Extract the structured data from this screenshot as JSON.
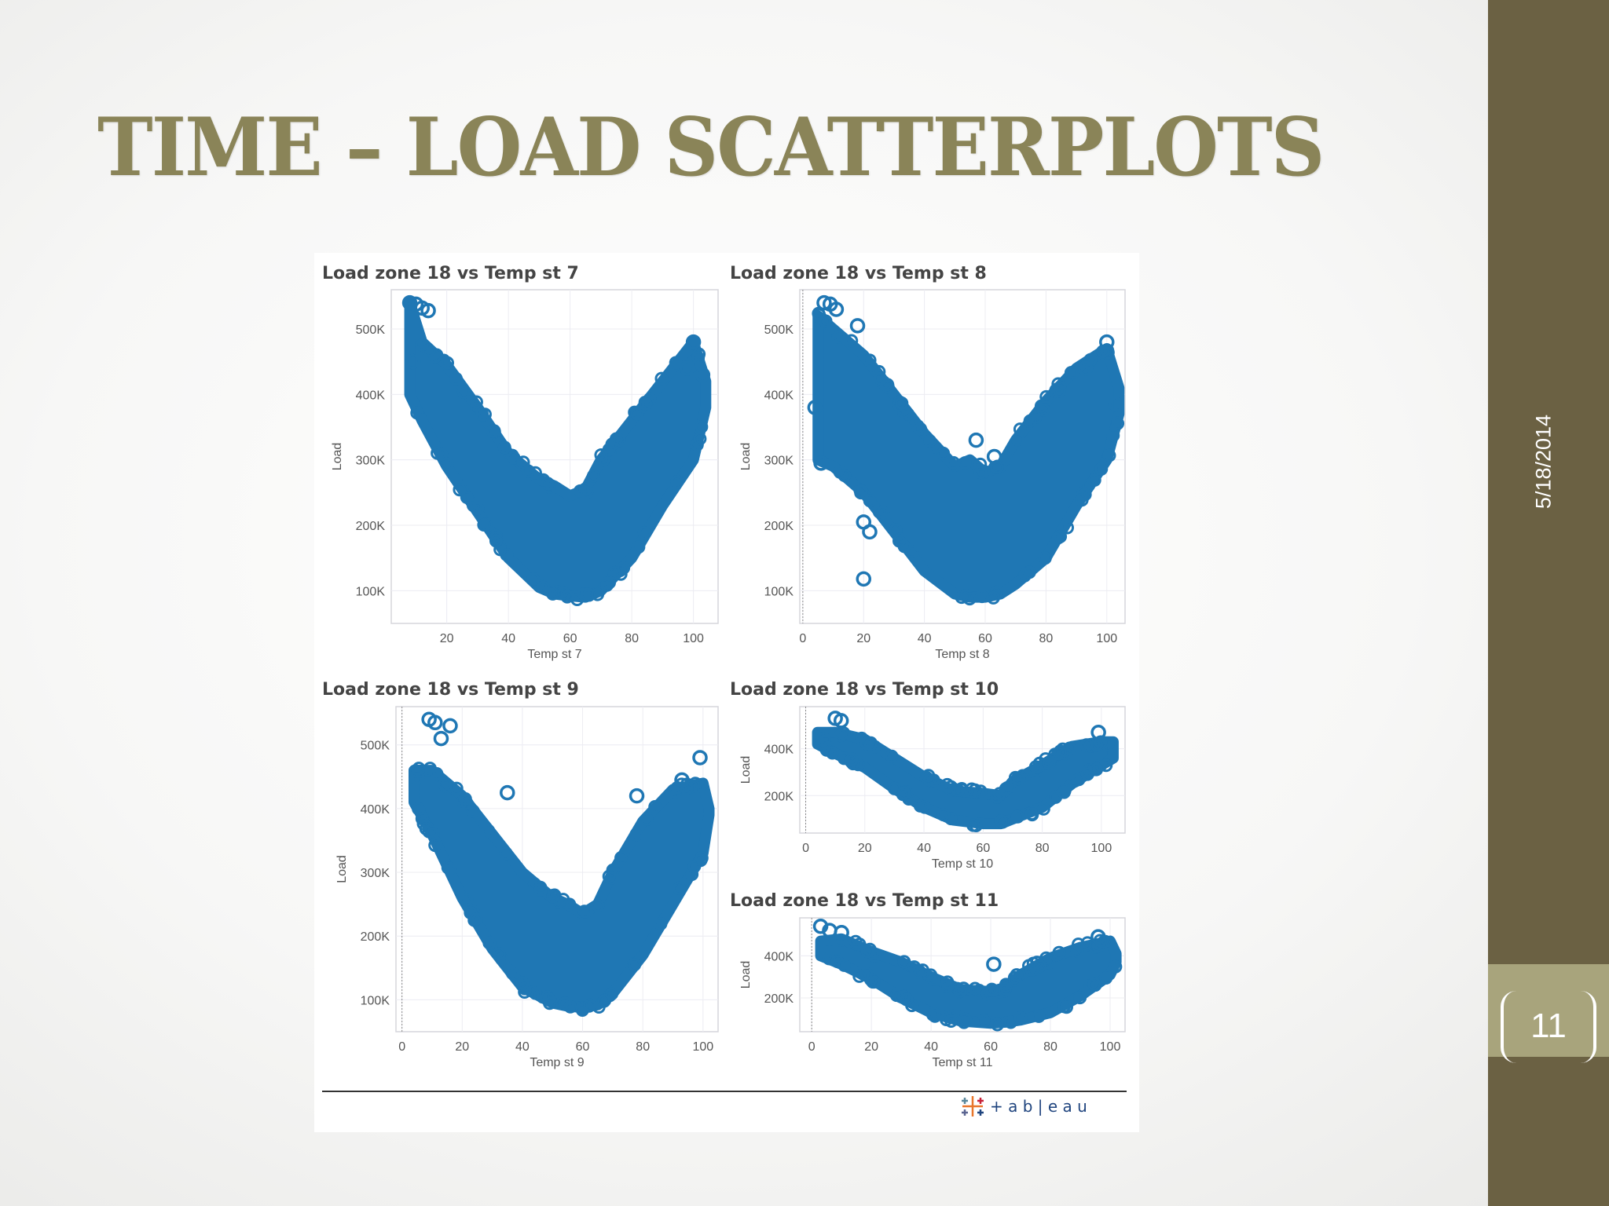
{
  "slide": {
    "title": "TIME – LOAD SCATTERPLOTS",
    "date": "5/18/2014",
    "page_number": "11"
  },
  "colors": {
    "title": "#8a8458",
    "sidebar": "#6b6143",
    "page_box": "#a8a47c",
    "points": "#1f77b4"
  },
  "logo": {
    "text": "+ a b | e a u",
    "icon": "tableau-logo-icon"
  },
  "chart_data": [
    {
      "type": "scatter",
      "title": "Load zone 18 vs Temp st 7",
      "xlabel": "Temp st 7",
      "ylabel": "Load",
      "xlim": [
        2,
        108
      ],
      "ylim": [
        50000,
        560000
      ],
      "x_ticks": [
        "20",
        "40",
        "60",
        "80",
        "100"
      ],
      "y_ticks": [
        "100K",
        "200K",
        "300K",
        "400K",
        "500K"
      ],
      "x_tick_values": [
        20,
        40,
        60,
        80,
        100
      ],
      "y_tick_values": [
        100000,
        200000,
        300000,
        400000,
        500000
      ],
      "envelope": {
        "x": [
          8,
          12,
          20,
          30,
          40,
          50,
          55,
          60,
          65,
          70,
          80,
          90,
          100,
          104
        ],
        "upper": [
          540000,
          480000,
          445000,
          380000,
          310000,
          270000,
          260000,
          245000,
          255000,
          300000,
          360000,
          420000,
          480000,
          420000
        ],
        "lower": [
          400000,
          360000,
          290000,
          220000,
          150000,
          105000,
          95000,
          92000,
          90000,
          100000,
          150000,
          230000,
          300000,
          380000
        ]
      },
      "outliers": [
        [
          8,
          540000
        ],
        [
          10,
          538000
        ],
        [
          12,
          532000
        ],
        [
          14,
          528000
        ],
        [
          9,
          450000
        ],
        [
          100,
          480000
        ],
        [
          103,
          430000
        ],
        [
          98,
          440000
        ]
      ]
    },
    {
      "type": "scatter",
      "title": "Load zone 18 vs Temp st 8",
      "xlabel": "Temp st 8",
      "ylabel": "Load",
      "xlim": [
        -1,
        106
      ],
      "ylim": [
        50000,
        560000
      ],
      "x_ticks": [
        "0",
        "20",
        "40",
        "60",
        "80",
        "100"
      ],
      "y_ticks": [
        "100K",
        "200K",
        "300K",
        "400K",
        "500K"
      ],
      "x_tick_values": [
        0,
        20,
        40,
        60,
        80,
        100
      ],
      "y_tick_values": [
        100000,
        200000,
        300000,
        400000,
        500000
      ],
      "envelope": {
        "x": [
          5,
          10,
          20,
          30,
          40,
          50,
          55,
          60,
          65,
          70,
          80,
          90,
          100,
          104
        ],
        "upper": [
          520000,
          500000,
          460000,
          400000,
          340000,
          290000,
          300000,
          280000,
          290000,
          330000,
          390000,
          440000,
          470000,
          410000
        ],
        "lower": [
          300000,
          290000,
          250000,
          190000,
          130000,
          95000,
          90000,
          90000,
          95000,
          110000,
          150000,
          230000,
          300000,
          370000
        ]
      },
      "outliers": [
        [
          7,
          540000
        ],
        [
          9,
          538000
        ],
        [
          11,
          530000
        ],
        [
          18,
          505000
        ],
        [
          20,
          205000
        ],
        [
          22,
          190000
        ],
        [
          20,
          118000
        ],
        [
          4,
          380000
        ],
        [
          6,
          295000
        ],
        [
          100,
          480000
        ],
        [
          103,
          385000
        ],
        [
          93,
          440000
        ],
        [
          57,
          330000
        ],
        [
          63,
          305000
        ]
      ]
    },
    {
      "type": "scatter",
      "title": "Load zone 18 vs Temp st 9",
      "xlabel": "Temp st 9",
      "ylabel": "Load",
      "xlim": [
        -2,
        105
      ],
      "ylim": [
        50000,
        560000
      ],
      "x_ticks": [
        "0",
        "20",
        "40",
        "60",
        "80",
        "100"
      ],
      "y_ticks": [
        "100K",
        "200K",
        "300K",
        "400K",
        "500K"
      ],
      "x_tick_values": [
        0,
        20,
        40,
        60,
        80,
        100
      ],
      "y_tick_values": [
        100000,
        200000,
        300000,
        400000,
        500000
      ],
      "envelope": {
        "x": [
          4,
          10,
          20,
          30,
          40,
          50,
          55,
          60,
          65,
          70,
          80,
          90,
          100,
          102
        ],
        "upper": [
          460000,
          460000,
          420000,
          360000,
          300000,
          260000,
          250000,
          235000,
          250000,
          300000,
          380000,
          430000,
          440000,
          400000
        ],
        "lower": [
          410000,
          360000,
          260000,
          180000,
          120000,
          95000,
          90000,
          88000,
          92000,
          110000,
          170000,
          250000,
          330000,
          390000
        ]
      },
      "outliers": [
        [
          9,
          540000
        ],
        [
          11,
          535000
        ],
        [
          16,
          530000
        ],
        [
          13,
          510000
        ],
        [
          5,
          450000
        ],
        [
          99,
          480000
        ],
        [
          93,
          445000
        ],
        [
          35,
          425000
        ],
        [
          78,
          420000
        ]
      ]
    },
    {
      "type": "scatter",
      "title": "Load zone 18 vs Temp st 10",
      "xlabel": "Temp st 10",
      "ylabel": "Load",
      "xlim": [
        -2,
        108
      ],
      "ylim": [
        40000,
        580000
      ],
      "x_ticks": [
        "0",
        "20",
        "40",
        "60",
        "80",
        "100"
      ],
      "y_ticks": [
        "200K",
        "400K"
      ],
      "x_tick_values": [
        0,
        20,
        40,
        60,
        80,
        100
      ],
      "y_tick_values": [
        200000,
        400000
      ],
      "envelope": {
        "x": [
          4,
          10,
          20,
          30,
          40,
          50,
          60,
          66,
          70,
          80,
          90,
          100,
          104
        ],
        "upper": [
          470000,
          470000,
          440000,
          360000,
          280000,
          220000,
          210000,
          200000,
          260000,
          330000,
          410000,
          430000,
          430000
        ],
        "lower": [
          420000,
          380000,
          320000,
          230000,
          150000,
          95000,
          80000,
          80000,
          100000,
          150000,
          250000,
          330000,
          360000
        ]
      },
      "outliers": [
        [
          10,
          530000
        ],
        [
          12,
          520000
        ],
        [
          6,
          440000
        ],
        [
          99,
          470000
        ]
      ]
    },
    {
      "type": "scatter",
      "title": "Load zone 18 vs Temp st 11",
      "xlabel": "Temp st 11",
      "ylabel": "Load",
      "xlim": [
        -4,
        105
      ],
      "ylim": [
        40000,
        580000
      ],
      "x_ticks": [
        "0",
        "20",
        "40",
        "60",
        "80",
        "100"
      ],
      "y_ticks": [
        "200K",
        "400K"
      ],
      "x_tick_values": [
        0,
        20,
        40,
        60,
        80,
        100
      ],
      "y_tick_values": [
        200000,
        400000
      ],
      "envelope": {
        "x": [
          3,
          10,
          20,
          30,
          40,
          50,
          60,
          65,
          70,
          80,
          90,
          100,
          102
        ],
        "upper": [
          470000,
          480000,
          420000,
          370000,
          300000,
          240000,
          230000,
          250000,
          310000,
          390000,
          440000,
          470000,
          410000
        ],
        "lower": [
          400000,
          360000,
          290000,
          200000,
          130000,
          90000,
          80000,
          85000,
          95000,
          130000,
          210000,
          310000,
          370000
        ]
      },
      "outliers": [
        [
          3,
          540000
        ],
        [
          6,
          520000
        ],
        [
          10,
          510000
        ],
        [
          61,
          360000
        ],
        [
          96,
          490000
        ]
      ]
    }
  ]
}
